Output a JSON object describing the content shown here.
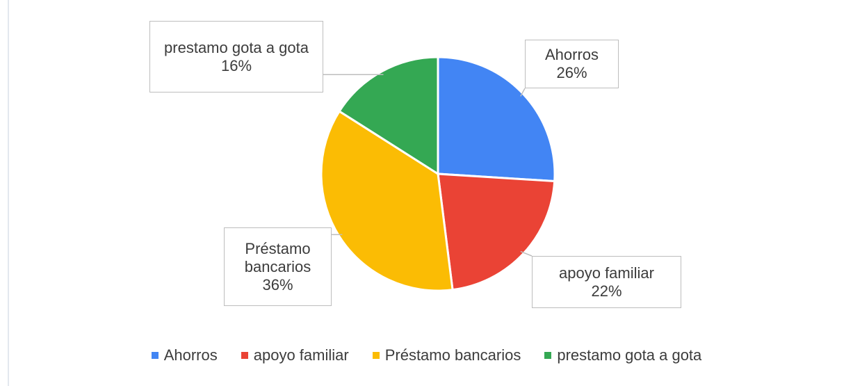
{
  "chart_data": {
    "type": "pie",
    "categories": [
      "Ahorros",
      "apoyo familiar",
      "Préstamo bancarios",
      "prestamo gota a gota"
    ],
    "values": [
      26,
      22,
      36,
      16
    ],
    "value_labels": [
      "26%",
      "22%",
      "36%",
      "16%"
    ],
    "colors": [
      "#4285f4",
      "#ea4335",
      "#fbbc04",
      "#34a853"
    ],
    "legend": "bottom"
  }
}
